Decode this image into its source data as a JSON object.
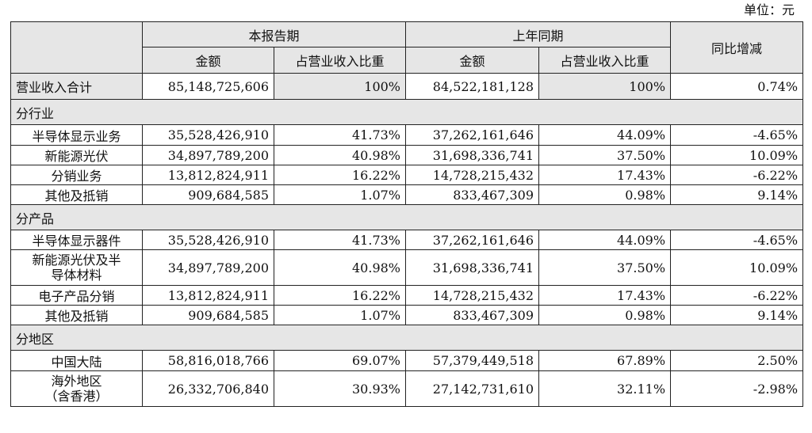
{
  "unit_label": "单位：元",
  "header": {
    "current_period": "本报告期",
    "prior_period": "上年同期",
    "amount": "金额",
    "share_of_revenue": "占营业收入比重",
    "yoy_change": "同比增减"
  },
  "total": {
    "label": "营业收入合计",
    "amount": "85,148,725,606",
    "share": "100%",
    "prior_amount": "84,522,181,128",
    "prior_share": "100%",
    "yoy": "0.74%"
  },
  "sections": [
    {
      "title": "分行业",
      "rows": [
        {
          "label": "半导体显示业务",
          "amount": "35,528,426,910",
          "share": "41.73%",
          "prior_amount": "37,262,161,646",
          "prior_share": "44.09%",
          "yoy": "-4.65%"
        },
        {
          "label": "新能源光伏",
          "amount": "34,897,789,200",
          "share": "40.98%",
          "prior_amount": "31,698,336,741",
          "prior_share": "37.50%",
          "yoy": "10.09%"
        },
        {
          "label": "分销业务",
          "amount": "13,812,824,911",
          "share": "16.22%",
          "prior_amount": "14,728,215,432",
          "prior_share": "17.43%",
          "yoy": "-6.22%"
        },
        {
          "label": "其他及抵销",
          "amount": "909,684,585",
          "share": "1.07%",
          "prior_amount": "833,467,309",
          "prior_share": "0.98%",
          "yoy": "9.14%"
        }
      ]
    },
    {
      "title": "分产品",
      "rows": [
        {
          "label": "半导体显示器件",
          "amount": "35,528,426,910",
          "share": "41.73%",
          "prior_amount": "37,262,161,646",
          "prior_share": "44.09%",
          "yoy": "-4.65%"
        },
        {
          "label": "新能源光伏及半",
          "label2": "导体材料",
          "amount": "34,897,789,200",
          "share": "40.98%",
          "prior_amount": "31,698,336,741",
          "prior_share": "37.50%",
          "yoy": "10.09%"
        },
        {
          "label": "电子产品分销",
          "amount": "13,812,824,911",
          "share": "16.22%",
          "prior_amount": "14,728,215,432",
          "prior_share": "17.43%",
          "yoy": "-6.22%"
        },
        {
          "label": "其他及抵销",
          "amount": "909,684,585",
          "share": "1.07%",
          "prior_amount": "833,467,309",
          "prior_share": "0.98%",
          "yoy": "9.14%"
        }
      ]
    },
    {
      "title": "分地区",
      "rows": [
        {
          "label": "中国大陆",
          "amount": "58,816,018,766",
          "share": "69.07%",
          "prior_amount": "57,379,449,518",
          "prior_share": "67.89%",
          "yoy": "2.50%"
        },
        {
          "label": "海外地区",
          "label2": "（含香港）",
          "amount": "26,332,706,840",
          "share": "30.93%",
          "prior_amount": "27,142,731,610",
          "prior_share": "32.11%",
          "yoy": "-2.98%"
        }
      ]
    }
  ]
}
